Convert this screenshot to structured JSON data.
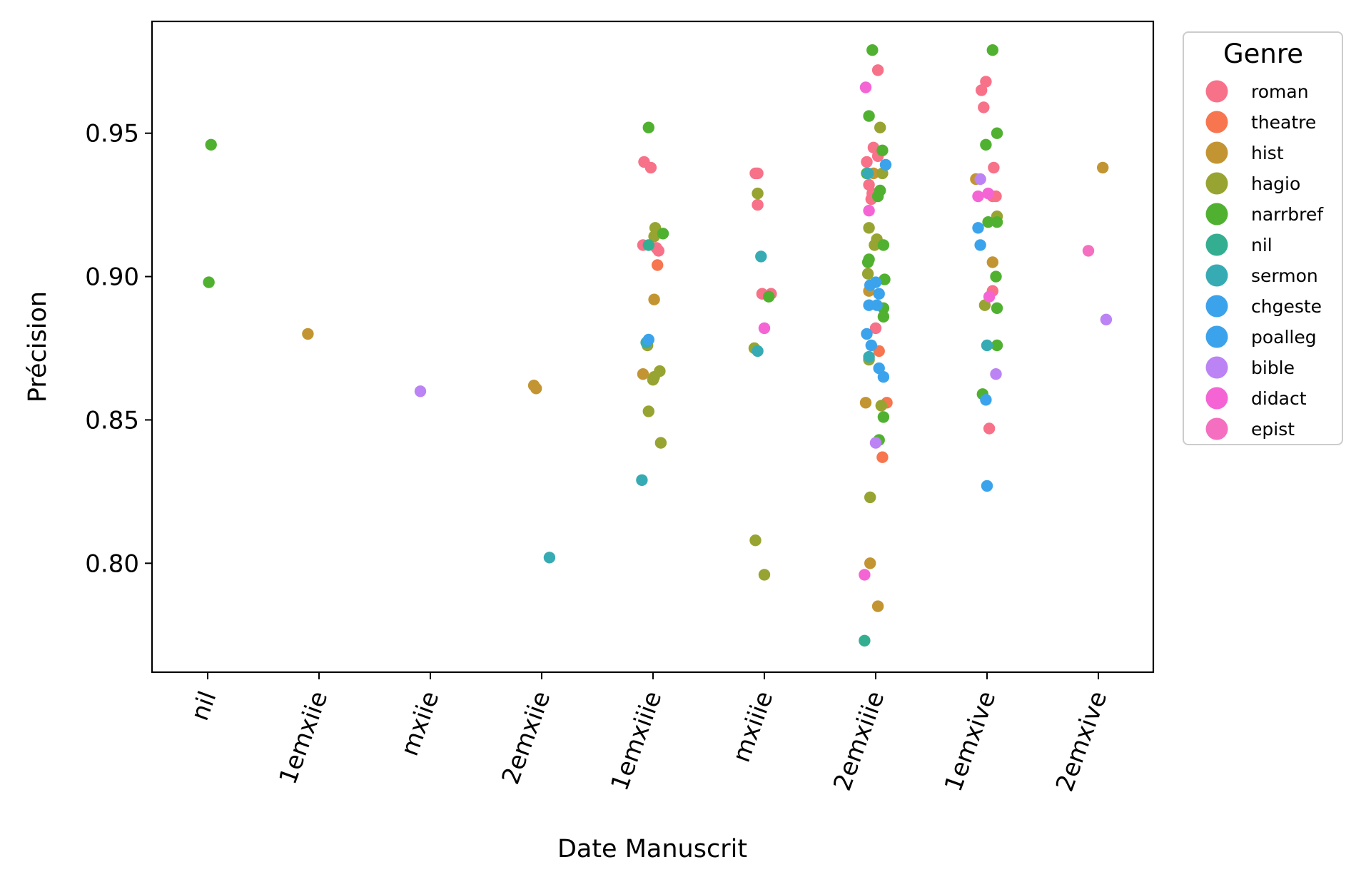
{
  "chart_data": {
    "type": "scatter",
    "subtype": "strip",
    "xlabel": "Date Manuscrit",
    "ylabel": "Précision",
    "categories": [
      "nil",
      "1emxiie",
      "mxiie",
      "2emxiie",
      "1emxiiie",
      "mxiiie",
      "2emxiiie",
      "1emxive",
      "2emxive"
    ],
    "yticks": [
      "0.80",
      "0.85",
      "0.90",
      "0.95"
    ],
    "ylim": [
      0.762,
      0.989
    ],
    "grid": false,
    "x_tick_rotation_deg": -70,
    "legend": {
      "title": "Genre",
      "placement": "outside-right-top",
      "entries": [
        {
          "label": "roman",
          "color": "#f77189"
        },
        {
          "label": "theatre",
          "color": "#f7754f"
        },
        {
          "label": "hist",
          "color": "#c39532"
        },
        {
          "label": "hagio",
          "color": "#97a431"
        },
        {
          "label": "narrbref",
          "color": "#50b131"
        },
        {
          "label": "nil",
          "color": "#34ae91"
        },
        {
          "label": "sermon",
          "color": "#37abb4"
        },
        {
          "label": "chgeste",
          "color": "#3ba3ec"
        },
        {
          "label": "poalleg",
          "color": "#3ba3ec"
        },
        {
          "label": "bible",
          "color": "#bb83f4"
        },
        {
          "label": "didact",
          "color": "#f564d4"
        },
        {
          "label": "epist",
          "color": "#f56fc0"
        }
      ]
    },
    "series": [
      {
        "name": "nil",
        "points": [
          {
            "genre": "narrbref",
            "y": 0.946,
            "j": 0.03
          },
          {
            "genre": "narrbref",
            "y": 0.898,
            "j": 0.01
          }
        ]
      },
      {
        "name": "1emxiie",
        "points": [
          {
            "genre": "hist",
            "y": 0.88,
            "j": -0.1
          }
        ]
      },
      {
        "name": "mxiie",
        "points": [
          {
            "genre": "bible",
            "y": 0.86,
            "j": -0.09
          }
        ]
      },
      {
        "name": "2emxiie",
        "points": [
          {
            "genre": "hist",
            "y": 0.862,
            "j": -0.07
          },
          {
            "genre": "hist",
            "y": 0.861,
            "j": -0.05
          },
          {
            "genre": "sermon",
            "y": 0.802,
            "j": 0.07
          }
        ]
      },
      {
        "name": "1emxiiie",
        "points": [
          {
            "genre": "roman",
            "y": 0.94,
            "j": -0.08
          },
          {
            "genre": "roman",
            "y": 0.938,
            "j": -0.02
          },
          {
            "genre": "roman",
            "y": 0.911,
            "j": -0.09
          },
          {
            "genre": "roman",
            "y": 0.909,
            "j": 0.05
          },
          {
            "genre": "roman",
            "y": 0.91,
            "j": 0.03
          },
          {
            "genre": "theatre",
            "y": 0.904,
            "j": 0.04
          },
          {
            "genre": "hist",
            "y": 0.892,
            "j": 0.01
          },
          {
            "genre": "hist",
            "y": 0.866,
            "j": -0.09
          },
          {
            "genre": "hagio",
            "y": 0.917,
            "j": 0.02
          },
          {
            "genre": "hagio",
            "y": 0.914,
            "j": 0.01
          },
          {
            "genre": "hagio",
            "y": 0.876,
            "j": -0.05
          },
          {
            "genre": "hagio",
            "y": 0.867,
            "j": 0.06
          },
          {
            "genre": "hagio",
            "y": 0.865,
            "j": 0.01
          },
          {
            "genre": "hagio",
            "y": 0.864,
            "j": 0.0
          },
          {
            "genre": "hagio",
            "y": 0.853,
            "j": -0.04
          },
          {
            "genre": "hagio",
            "y": 0.842,
            "j": 0.07
          },
          {
            "genre": "narrbref",
            "y": 0.952,
            "j": -0.04
          },
          {
            "genre": "narrbref",
            "y": 0.915,
            "j": 0.09
          },
          {
            "genre": "nil",
            "y": 0.911,
            "j": -0.04
          },
          {
            "genre": "sermon",
            "y": 0.877,
            "j": -0.06
          },
          {
            "genre": "chgeste",
            "y": 0.878,
            "j": -0.04
          },
          {
            "genre": "sermon",
            "y": 0.829,
            "j": -0.1
          }
        ]
      },
      {
        "name": "mxiiie",
        "points": [
          {
            "genre": "roman",
            "y": 0.936,
            "j": -0.08
          },
          {
            "genre": "roman",
            "y": 0.936,
            "j": -0.06
          },
          {
            "genre": "roman",
            "y": 0.925,
            "j": -0.06
          },
          {
            "genre": "roman",
            "y": 0.894,
            "j": -0.02
          },
          {
            "genre": "roman",
            "y": 0.894,
            "j": 0.06
          },
          {
            "genre": "hagio",
            "y": 0.929,
            "j": -0.06
          },
          {
            "genre": "hagio",
            "y": 0.875,
            "j": -0.09
          },
          {
            "genre": "hagio",
            "y": 0.808,
            "j": -0.08
          },
          {
            "genre": "hagio",
            "y": 0.796,
            "j": 0.0
          },
          {
            "genre": "narrbref",
            "y": 0.893,
            "j": 0.04
          },
          {
            "genre": "sermon",
            "y": 0.907,
            "j": -0.03
          },
          {
            "genre": "sermon",
            "y": 0.874,
            "j": -0.06
          },
          {
            "genre": "didact",
            "y": 0.882,
            "j": 0.0
          }
        ]
      },
      {
        "name": "2emxiiie",
        "points": [
          {
            "genre": "roman",
            "y": 0.972,
            "j": 0.02
          },
          {
            "genre": "roman",
            "y": 0.945,
            "j": -0.02
          },
          {
            "genre": "roman",
            "y": 0.94,
            "j": -0.08
          },
          {
            "genre": "roman",
            "y": 0.942,
            "j": 0.02
          },
          {
            "genre": "roman",
            "y": 0.932,
            "j": -0.06
          },
          {
            "genre": "roman",
            "y": 0.929,
            "j": -0.03
          },
          {
            "genre": "roman",
            "y": 0.927,
            "j": -0.04
          },
          {
            "genre": "roman",
            "y": 0.882,
            "j": 0.0
          },
          {
            "genre": "theatre",
            "y": 0.874,
            "j": 0.03
          },
          {
            "genre": "theatre",
            "y": 0.856,
            "j": 0.1
          },
          {
            "genre": "theatre",
            "y": 0.837,
            "j": 0.06
          },
          {
            "genre": "hist",
            "y": 0.936,
            "j": -0.02
          },
          {
            "genre": "hist",
            "y": 0.895,
            "j": -0.06
          },
          {
            "genre": "hist",
            "y": 0.856,
            "j": -0.09
          },
          {
            "genre": "hist",
            "y": 0.8,
            "j": -0.05
          },
          {
            "genre": "hist",
            "y": 0.785,
            "j": 0.02
          },
          {
            "genre": "hagio",
            "y": 0.952,
            "j": 0.04
          },
          {
            "genre": "hagio",
            "y": 0.936,
            "j": 0.06
          },
          {
            "genre": "hagio",
            "y": 0.917,
            "j": -0.06
          },
          {
            "genre": "hagio",
            "y": 0.913,
            "j": 0.01
          },
          {
            "genre": "hagio",
            "y": 0.911,
            "j": -0.01
          },
          {
            "genre": "hagio",
            "y": 0.901,
            "j": -0.07
          },
          {
            "genre": "hagio",
            "y": 0.871,
            "j": -0.06
          },
          {
            "genre": "hagio",
            "y": 0.855,
            "j": 0.05
          },
          {
            "genre": "hagio",
            "y": 0.823,
            "j": -0.05
          },
          {
            "genre": "narrbref",
            "y": 0.979,
            "j": -0.03
          },
          {
            "genre": "narrbref",
            "y": 0.956,
            "j": -0.06
          },
          {
            "genre": "narrbref",
            "y": 0.944,
            "j": 0.06
          },
          {
            "genre": "narrbref",
            "y": 0.936,
            "j": -0.08
          },
          {
            "genre": "narrbref",
            "y": 0.93,
            "j": 0.04
          },
          {
            "genre": "narrbref",
            "y": 0.928,
            "j": 0.02
          },
          {
            "genre": "narrbref",
            "y": 0.911,
            "j": 0.07
          },
          {
            "genre": "narrbref",
            "y": 0.906,
            "j": -0.06
          },
          {
            "genre": "narrbref",
            "y": 0.905,
            "j": -0.07
          },
          {
            "genre": "narrbref",
            "y": 0.899,
            "j": 0.08
          },
          {
            "genre": "narrbref",
            "y": 0.889,
            "j": 0.07
          },
          {
            "genre": "narrbref",
            "y": 0.886,
            "j": 0.07
          },
          {
            "genre": "narrbref",
            "y": 0.851,
            "j": 0.07
          },
          {
            "genre": "narrbref",
            "y": 0.843,
            "j": 0.03
          },
          {
            "genre": "nil",
            "y": 0.773,
            "j": -0.1
          },
          {
            "genre": "sermon",
            "y": 0.936,
            "j": -0.07
          },
          {
            "genre": "sermon",
            "y": 0.872,
            "j": -0.06
          },
          {
            "genre": "chgeste",
            "y": 0.939,
            "j": 0.09
          },
          {
            "genre": "chgeste",
            "y": 0.897,
            "j": -0.05
          },
          {
            "genre": "chgeste",
            "y": 0.89,
            "j": -0.06
          },
          {
            "genre": "chgeste",
            "y": 0.88,
            "j": -0.08
          },
          {
            "genre": "chgeste",
            "y": 0.876,
            "j": -0.04
          },
          {
            "genre": "poalleg",
            "y": 0.898,
            "j": 0.0
          },
          {
            "genre": "poalleg",
            "y": 0.894,
            "j": 0.03
          },
          {
            "genre": "poalleg",
            "y": 0.89,
            "j": 0.01
          },
          {
            "genre": "poalleg",
            "y": 0.868,
            "j": 0.03
          },
          {
            "genre": "poalleg",
            "y": 0.865,
            "j": 0.07
          },
          {
            "genre": "bible",
            "y": 0.842,
            "j": 0.0
          },
          {
            "genre": "didact",
            "y": 0.966,
            "j": -0.09
          },
          {
            "genre": "didact",
            "y": 0.923,
            "j": -0.06
          },
          {
            "genre": "didact",
            "y": 0.796,
            "j": -0.1
          }
        ]
      },
      {
        "name": "1emxive",
        "points": [
          {
            "genre": "roman",
            "y": 0.968,
            "j": -0.01
          },
          {
            "genre": "roman",
            "y": 0.965,
            "j": -0.05
          },
          {
            "genre": "roman",
            "y": 0.959,
            "j": -0.03
          },
          {
            "genre": "roman",
            "y": 0.938,
            "j": 0.06
          },
          {
            "genre": "roman",
            "y": 0.928,
            "j": 0.05
          },
          {
            "genre": "roman",
            "y": 0.928,
            "j": 0.08
          },
          {
            "genre": "roman",
            "y": 0.895,
            "j": 0.05
          },
          {
            "genre": "roman",
            "y": 0.847,
            "j": 0.02
          },
          {
            "genre": "hist",
            "y": 0.934,
            "j": -0.1
          },
          {
            "genre": "hist",
            "y": 0.905,
            "j": 0.05
          },
          {
            "genre": "hagio",
            "y": 0.921,
            "j": 0.09
          },
          {
            "genre": "hagio",
            "y": 0.89,
            "j": -0.02
          },
          {
            "genre": "narrbref",
            "y": 0.979,
            "j": 0.05
          },
          {
            "genre": "narrbref",
            "y": 0.95,
            "j": 0.09
          },
          {
            "genre": "narrbref",
            "y": 0.946,
            "j": -0.01
          },
          {
            "genre": "narrbref",
            "y": 0.919,
            "j": 0.01
          },
          {
            "genre": "narrbref",
            "y": 0.919,
            "j": 0.09
          },
          {
            "genre": "narrbref",
            "y": 0.9,
            "j": 0.08
          },
          {
            "genre": "narrbref",
            "y": 0.889,
            "j": 0.09
          },
          {
            "genre": "narrbref",
            "y": 0.876,
            "j": 0.09
          },
          {
            "genre": "narrbref",
            "y": 0.859,
            "j": -0.04
          },
          {
            "genre": "sermon",
            "y": 0.876,
            "j": 0.0
          },
          {
            "genre": "chgeste",
            "y": 0.917,
            "j": -0.08
          },
          {
            "genre": "chgeste",
            "y": 0.911,
            "j": -0.06
          },
          {
            "genre": "chgeste",
            "y": 0.857,
            "j": -0.01
          },
          {
            "genre": "chgeste",
            "y": 0.827,
            "j": 0.0
          },
          {
            "genre": "bible",
            "y": 0.934,
            "j": -0.06
          },
          {
            "genre": "bible",
            "y": 0.866,
            "j": 0.08
          },
          {
            "genre": "didact",
            "y": 0.929,
            "j": 0.01
          },
          {
            "genre": "didact",
            "y": 0.928,
            "j": -0.08
          },
          {
            "genre": "didact",
            "y": 0.893,
            "j": 0.02
          }
        ]
      },
      {
        "name": "2emxive",
        "points": [
          {
            "genre": "hist",
            "y": 0.938,
            "j": 0.04
          },
          {
            "genre": "epist",
            "y": 0.909,
            "j": -0.09
          },
          {
            "genre": "bible",
            "y": 0.885,
            "j": 0.07
          }
        ]
      }
    ]
  }
}
